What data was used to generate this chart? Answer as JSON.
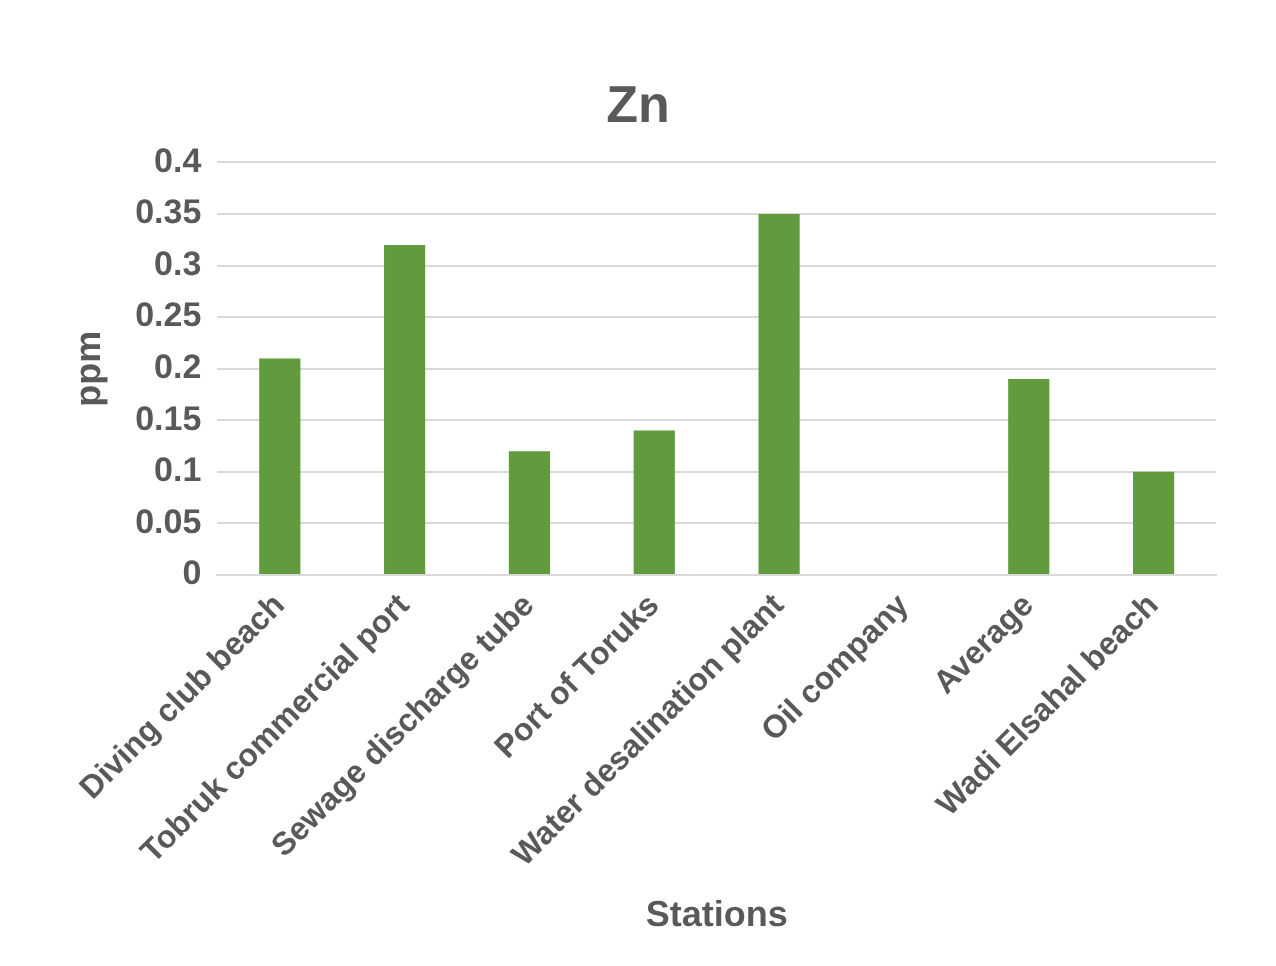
{
  "chart_data": {
    "type": "bar",
    "title": "Zn",
    "xlabel": "Stations",
    "ylabel": "ppm",
    "categories": [
      "Diving club beach",
      "Tobruk commercial port",
      "Sewage discharge tube",
      "Port of Toruks",
      "Water desalination plant",
      "Oil company",
      "Average",
      "Wadi Elsahal beach"
    ],
    "values": [
      0.21,
      0.32,
      0.12,
      0.14,
      0.35,
      0,
      0.19,
      0.1
    ],
    "color": "#629a3e",
    "ylim": [
      0,
      0.4
    ],
    "yticks": [
      0,
      0.05,
      0.1,
      0.15,
      0.2,
      0.25,
      0.3,
      0.35,
      0.4
    ],
    "grid": "y",
    "legend": false
  }
}
